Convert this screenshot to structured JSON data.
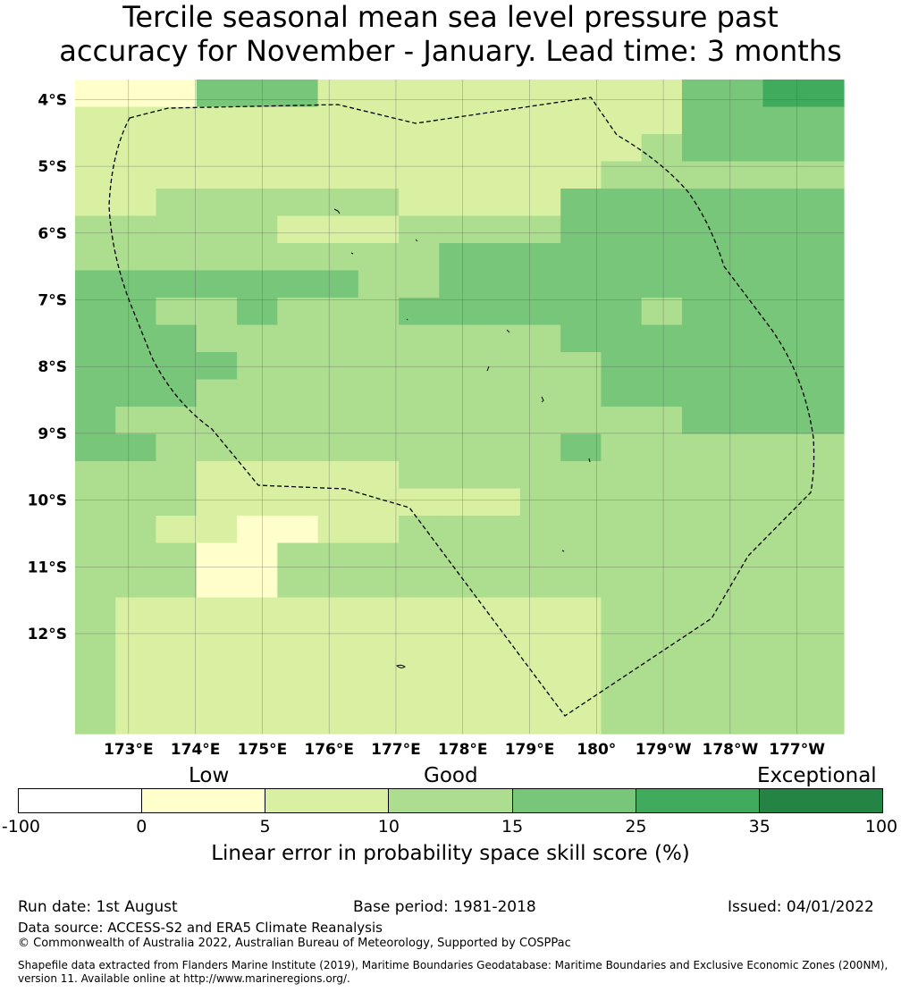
{
  "title_line1": "Tercile seasonal mean sea level pressure past",
  "title_line2": "accuracy for November - January. Lead time: 3 months",
  "map": {
    "lat_labels": [
      "4°S",
      "5°S",
      "6°S",
      "7°S",
      "8°S",
      "9°S",
      "10°S",
      "11°S",
      "12°S"
    ],
    "lat_values": [
      -4,
      -5,
      -6,
      -7,
      -8,
      -9,
      -10,
      -11,
      -12
    ],
    "lon_labels": [
      "173°E",
      "174°E",
      "175°E",
      "176°E",
      "177°E",
      "178°E",
      "179°E",
      "180°",
      "179°W",
      "178°W",
      "177°W"
    ],
    "lon_values": [
      173,
      174,
      175,
      176,
      177,
      178,
      179,
      180,
      181,
      182,
      183
    ],
    "lon_range_east": [
      172.2,
      183.7
    ],
    "lat_range": [
      -3.7,
      -13.5
    ],
    "grid_colors": [
      "#ffffff",
      "#ffffcc",
      "#d9f0a3",
      "#addd8e",
      "#78c679",
      "#41ab5d",
      "#238443"
    ],
    "cell_levels": [
      "1114442222222224455",
      "2222222222222224444",
      "2222222222222234444",
      "2222222222222333333",
      "2233333322224444444",
      "3333322233334444444",
      "3333333334444444444",
      "4444444334444444444",
      "4433433344444434444",
      "4443333333334444444",
      "4444333333333444444",
      "4443333333333444444",
      "4333333333333334444",
      "4433333333334333333",
      "3332222233333333333",
      "3332222222233333333",
      "3322112233333333333",
      "3331133333333333333",
      "3331133333333333333",
      "3222222222222333333",
      "3222222222222333333",
      "3222222222222333333",
      "3222222222222333333",
      "3222222222222333333"
    ]
  },
  "colorbar": {
    "category_low": "Low",
    "category_good": "Good",
    "category_exceptional": "Exceptional",
    "ticks": [
      "-100",
      "0",
      "5",
      "10",
      "15",
      "25",
      "35",
      "100"
    ],
    "colors": [
      "#ffffff",
      "#ffffcc",
      "#d9f0a3",
      "#addd8e",
      "#78c679",
      "#41ab5d",
      "#238443"
    ],
    "label": "Linear error in probability space skill score (%)"
  },
  "footer": {
    "run_date": "Run date: 1st August",
    "base_period": "Base period: 1981-2018",
    "issued": "Issued: 04/01/2022",
    "data_source": "Data source: ACCESS-S2 and ERA5 Climate Reanalysis",
    "copyright": "© Commonwealth of Australia 2022, Australian Bureau of Meteorology, Supported by COSPPac",
    "shapefile": "Shapefile data extracted from Flanders Marine Institute (2019), Maritime Boundaries Geodatabase: Maritime Boundaries and Exclusive Economic Zones (200NM), version 11. Available online at http://www.marineregions.org/."
  }
}
